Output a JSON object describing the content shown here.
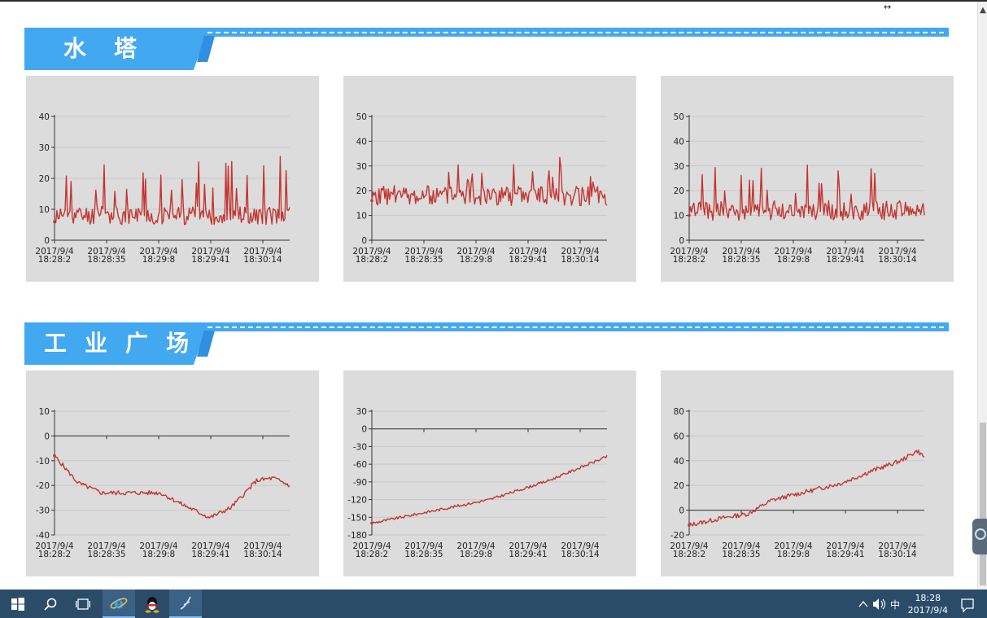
{
  "sections": [
    {
      "title": "水塔"
    },
    {
      "title": "工业广场"
    }
  ],
  "x_tick_labels": [
    [
      "2017/9/4",
      "18:28:2"
    ],
    [
      "2017/9/4",
      "18:28:35"
    ],
    [
      "2017/9/4",
      "18:29:8"
    ],
    [
      "2017/9/4",
      "18:29:41"
    ],
    [
      "2017/9/4",
      "18:30:14"
    ]
  ],
  "line_color": "#c23531",
  "chart_data": [
    {
      "type": "line",
      "section": "水塔",
      "ylim": [
        0,
        40
      ],
      "yticks": [
        0,
        10,
        20,
        30,
        40
      ],
      "n": 200,
      "pattern": "spiky",
      "base": 8,
      "spike": 14,
      "noise": 3,
      "seed": 11,
      "start": 6
    },
    {
      "type": "line",
      "section": "水塔",
      "ylim": [
        0,
        50
      ],
      "yticks": [
        0,
        10,
        20,
        30,
        40,
        50
      ],
      "n": 200,
      "pattern": "spiky",
      "base": 18,
      "spike": 10,
      "noise": 4,
      "seed": 23,
      "start": 16
    },
    {
      "type": "line",
      "section": "水塔",
      "ylim": [
        0,
        50
      ],
      "yticks": [
        0,
        10,
        20,
        30,
        40,
        50
      ],
      "n": 200,
      "pattern": "spiky",
      "base": 12,
      "spike": 14,
      "noise": 4,
      "seed": 37,
      "start": 10
    },
    {
      "type": "line",
      "section": "工业广场",
      "ylim": [
        -40,
        10
      ],
      "yticks": [
        -40,
        -30,
        -20,
        -10,
        0,
        10
      ],
      "n": 200,
      "pattern": "curve",
      "keypoints": [
        [
          0,
          -8
        ],
        [
          0.1,
          -19
        ],
        [
          0.2,
          -23
        ],
        [
          0.32,
          -23
        ],
        [
          0.45,
          -23
        ],
        [
          0.55,
          -28
        ],
        [
          0.66,
          -33
        ],
        [
          0.75,
          -29
        ],
        [
          0.86,
          -18
        ],
        [
          0.93,
          -17
        ],
        [
          1.0,
          -20
        ]
      ],
      "noise": 0.9,
      "seed": 5
    },
    {
      "type": "line",
      "section": "工业广场",
      "ylim": [
        -180,
        30
      ],
      "yticks": [
        -180,
        -150,
        -120,
        -90,
        -60,
        -30,
        0,
        30
      ],
      "n": 200,
      "pattern": "curve",
      "keypoints": [
        [
          0,
          -160
        ],
        [
          0.25,
          -140
        ],
        [
          0.5,
          -120
        ],
        [
          0.75,
          -88
        ],
        [
          1.0,
          -47
        ]
      ],
      "noise": 2.2,
      "seed": 9
    },
    {
      "type": "line",
      "section": "工业广场",
      "ylim": [
        -20,
        80
      ],
      "yticks": [
        -20,
        0,
        20,
        40,
        60,
        80
      ],
      "n": 200,
      "pattern": "curve",
      "keypoints": [
        [
          0,
          -12
        ],
        [
          0.15,
          -6
        ],
        [
          0.25,
          -3
        ],
        [
          0.35,
          8
        ],
        [
          0.5,
          15
        ],
        [
          0.65,
          22
        ],
        [
          0.78,
          32
        ],
        [
          0.9,
          40
        ],
        [
          0.97,
          48
        ],
        [
          1.0,
          43
        ]
      ],
      "noise": 1.8,
      "seed": 13
    }
  ],
  "taskbar": {
    "clock_time": "18:28",
    "clock_date": "2017/9/4",
    "ime": "中"
  }
}
